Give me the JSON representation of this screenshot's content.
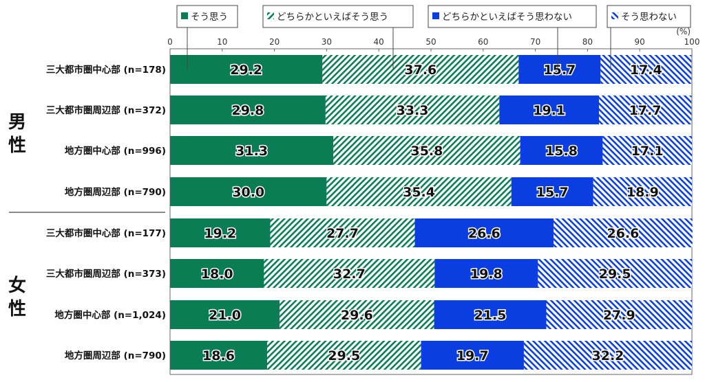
{
  "chart_data": {
    "type": "bar",
    "orientation": "horizontal",
    "stacked": true,
    "unit_label": "(%)",
    "xlim": [
      0,
      100
    ],
    "x_ticks": [
      0,
      10,
      20,
      30,
      40,
      50,
      60,
      70,
      80,
      90,
      100
    ],
    "grid": true,
    "legend_placement": "top",
    "groups": [
      {
        "label": "男性",
        "categories": [
          "三大都市圏中心部 (n=178)",
          "三大都市圏周辺部 (n=372)",
          "地方圏中心部 (n=996)",
          "地方圏周辺部 (n=790)"
        ]
      },
      {
        "label": "女性",
        "categories": [
          "三大都市圏中心部 (n=177)",
          "三大都市圏周辺部 (n=373)",
          "地方圏中心部 (n=1,024)",
          "地方圏周辺部 (n=790)"
        ]
      }
    ],
    "series": [
      {
        "name": "そう思う",
        "color": "#0b7d55",
        "pattern": "solid",
        "values": [
          29.2,
          29.8,
          31.3,
          30.0,
          19.2,
          18.0,
          21.0,
          18.6
        ]
      },
      {
        "name": "どちらかといえばそう思う",
        "color": "#0b7d55",
        "pattern": "hatch-backslash",
        "values": [
          37.6,
          33.3,
          35.8,
          35.4,
          27.7,
          32.7,
          29.6,
          29.5
        ]
      },
      {
        "name": "どちらかといえばそう思わない",
        "color": "#0a3ee0",
        "pattern": "solid",
        "values": [
          15.7,
          19.1,
          15.8,
          15.7,
          26.6,
          19.8,
          21.5,
          19.7
        ]
      },
      {
        "name": "そう思わない",
        "color": "#0a3ee0",
        "pattern": "hatch-slash",
        "values": [
          17.4,
          17.7,
          17.1,
          18.9,
          26.6,
          29.5,
          27.9,
          32.2
        ]
      }
    ]
  }
}
